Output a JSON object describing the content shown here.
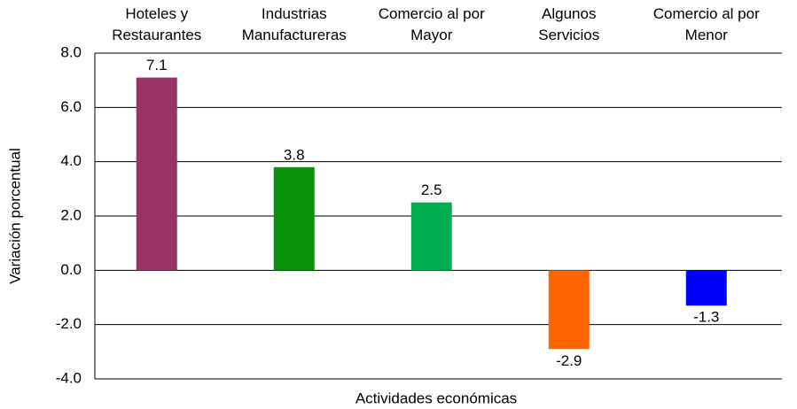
{
  "chart_data": {
    "type": "bar",
    "categories": [
      "Hoteles y\nRestaurantes",
      "Industrias\nManufactureras",
      "Comercio al por\nMayor",
      "Algunos\nServicios",
      "Comercio al por\nMenor"
    ],
    "values": [
      7.1,
      3.8,
      2.5,
      -2.9,
      -1.3
    ],
    "colors": [
      "#993366",
      "#079207",
      "#00b050",
      "#ff6600",
      "#0000ff"
    ],
    "xlabel": "Actividades económicas",
    "ylabel": "Variación porcentual",
    "ylim": [
      -4,
      8
    ],
    "yticks": [
      {
        "value": -4,
        "label": "-4.0"
      },
      {
        "value": -2,
        "label": "-2.0"
      },
      {
        "value": 0,
        "label": "0.0"
      },
      {
        "value": 2,
        "label": "2.0"
      },
      {
        "value": 4,
        "label": "4.0"
      },
      {
        "value": 6,
        "label": "6.0"
      },
      {
        "value": 8,
        "label": "8.0"
      }
    ],
    "grid": true
  }
}
